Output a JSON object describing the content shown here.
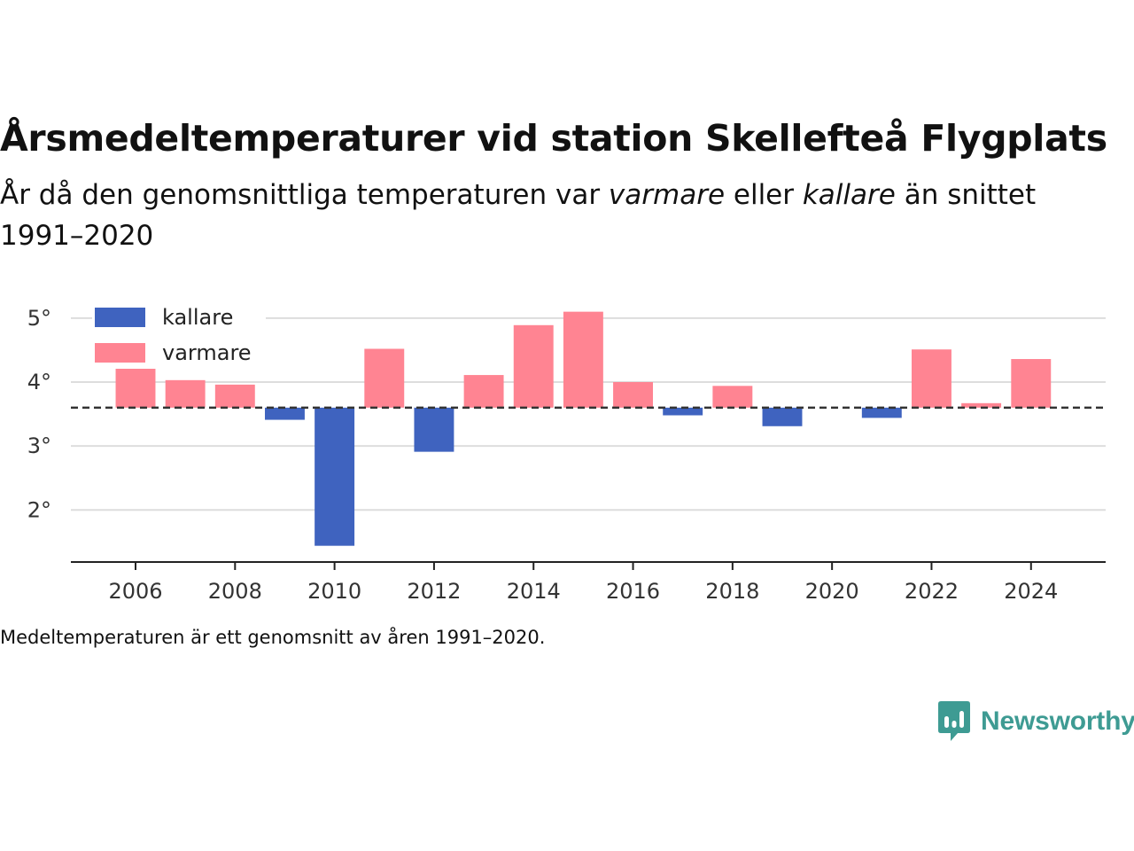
{
  "title": "Årsmedeltemperaturer vid station Skellefteå Flygplats",
  "subtitle": {
    "part1": "År då den genomsnittliga temperaturen var ",
    "warmer_word": "varmare",
    "part2": " eller ",
    "colder_word": "kallare",
    "part3": " än snittet 1991–2020"
  },
  "footnote": "Medeltemperaturen är ett genomsnitt av åren 1991–2020.",
  "brand": {
    "name": "Newsworthy",
    "icon": "newsworthy-bar-chart-bubble-icon",
    "color": "#3e9b93"
  },
  "colors": {
    "colder": "#3f63bf",
    "warmer": "#ff8492",
    "baseline": "#333333",
    "grid": "#dddddd",
    "axis": "#222222"
  },
  "chart_data": {
    "type": "bar",
    "title": "Årsmedeltemperaturer vid station Skellefteå Flygplats",
    "baseline": 3.6,
    "baseline_style": "dashed",
    "y_unit": "°",
    "ylim": [
      1.2,
      5.4
    ],
    "yticks": [
      2,
      3,
      4,
      5
    ],
    "ytick_labels": [
      "2°",
      "3°",
      "4°",
      "5°"
    ],
    "xlim": [
      2004.7,
      2025.5
    ],
    "xticks": [
      2006,
      2008,
      2010,
      2012,
      2014,
      2016,
      2018,
      2020,
      2022,
      2024
    ],
    "xtick_labels": [
      "2006",
      "2008",
      "2010",
      "2012",
      "2014",
      "2016",
      "2018",
      "2020",
      "2022",
      "2024"
    ],
    "grid": "horizontal",
    "legend_position": "top-left",
    "legend": [
      {
        "label": "kallare",
        "series": "colder"
      },
      {
        "label": "varmare",
        "series": "warmer"
      }
    ],
    "years": [
      2006,
      2007,
      2008,
      2009,
      2010,
      2011,
      2012,
      2013,
      2014,
      2015,
      2016,
      2017,
      2018,
      2019,
      2020,
      2021,
      2022,
      2023,
      2024
    ],
    "values": [
      4.28,
      4.03,
      3.96,
      3.41,
      1.44,
      4.52,
      2.91,
      4.11,
      4.89,
      5.1,
      4.0,
      3.48,
      3.94,
      3.31,
      3.6,
      3.44,
      4.51,
      3.67,
      4.36
    ]
  }
}
